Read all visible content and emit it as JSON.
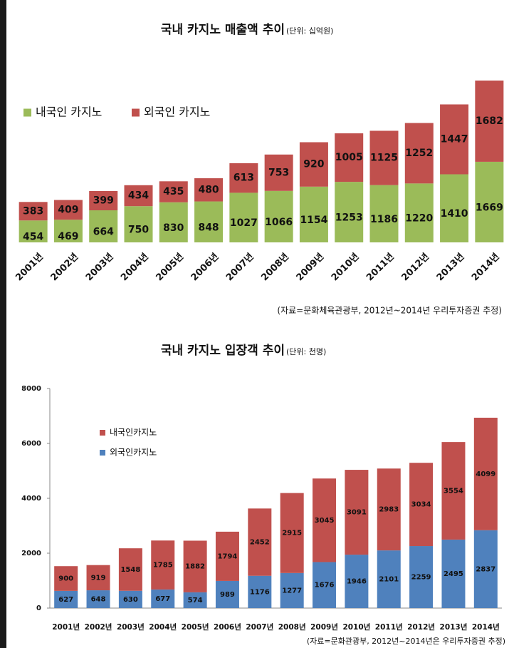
{
  "chart_data": [
    {
      "type": "stacked-bar",
      "title": "국내 카지노 매출액 추이",
      "subtitle": "(단위: 십억원)",
      "categories": [
        "2001년",
        "2002년",
        "2003년",
        "2004년",
        "2005년",
        "2006년",
        "2007년",
        "2008년",
        "2009년",
        "2010년",
        "2011년",
        "2012년",
        "2013년",
        "2014년"
      ],
      "series": [
        {
          "name": "내국인 카지노",
          "color": "#9bbb59",
          "values": [
            454,
            469,
            664,
            750,
            830,
            848,
            1027,
            1066,
            1154,
            1253,
            1186,
            1220,
            1410,
            1669
          ]
        },
        {
          "name": "외국인 카지노",
          "color": "#c0504d",
          "values": [
            383,
            409,
            399,
            434,
            435,
            480,
            613,
            753,
            920,
            1005,
            1125,
            1252,
            1447,
            1682
          ]
        }
      ],
      "legend": "top-left",
      "source": "(자료=문화체육관광부, 2012년~2014년 우리투자증권 추정)"
    },
    {
      "type": "stacked-bar",
      "title": "국내 카지노 입장객 추이",
      "subtitle": "(단위: 천명)",
      "categories": [
        "2001년",
        "2002년",
        "2003년",
        "2004년",
        "2005년",
        "2006년",
        "2007년",
        "2008년",
        "2009년",
        "2010년",
        "2011년",
        "2012년",
        "2013년",
        "2014년"
      ],
      "series": [
        {
          "name": "외국인카지노",
          "color": "#4f81bd",
          "values": [
            627,
            648,
            630,
            677,
            574,
            989,
            1176,
            1277,
            1676,
            1946,
            2101,
            2259,
            2495,
            2837
          ]
        },
        {
          "name": "내국인카지노",
          "color": "#c0504d",
          "values": [
            900,
            919,
            1548,
            1785,
            1882,
            1794,
            2452,
            2915,
            3045,
            3091,
            2983,
            3034,
            3554,
            4099
          ]
        }
      ],
      "ylim": [
        0,
        8000
      ],
      "yticks": [
        0,
        2000,
        4000,
        6000,
        8000
      ],
      "legend": "top-left",
      "source": "(자료=문화관광부, 2012년~2014년은 우리투자증권 추정)"
    }
  ]
}
